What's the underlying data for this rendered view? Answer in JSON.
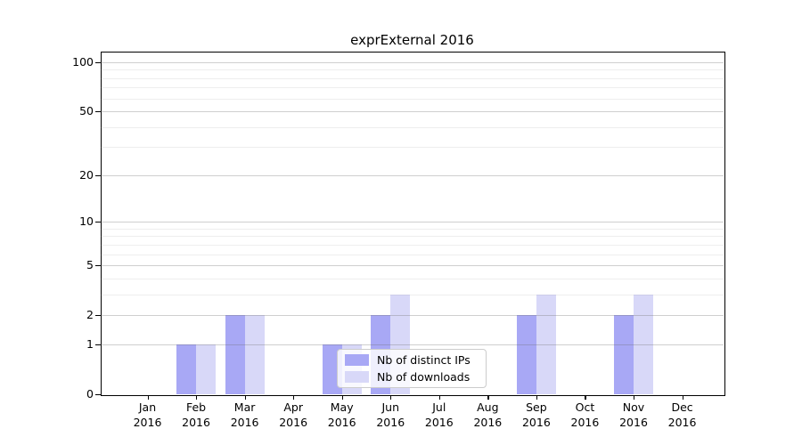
{
  "chart_data": {
    "type": "bar",
    "title": "exprExternal 2016",
    "categories": [
      "Jan",
      "Feb",
      "Mar",
      "Apr",
      "May",
      "Jun",
      "Jul",
      "Aug",
      "Sep",
      "Oct",
      "Nov",
      "Dec"
    ],
    "category_year": "2016",
    "series": [
      {
        "name": "Nb of distinct IPs",
        "color": "#a8a8f5",
        "values": [
          0,
          1,
          2,
          0,
          1,
          2,
          0,
          0,
          2,
          0,
          2,
          0
        ]
      },
      {
        "name": "Nb of downloads",
        "color": "#d8d8f8",
        "values": [
          0,
          1,
          2,
          0,
          1,
          3,
          0,
          0,
          3,
          0,
          3,
          0
        ]
      }
    ],
    "y_axis": {
      "scale": "log1p",
      "tick_values": [
        100,
        50,
        20,
        10,
        5,
        2,
        1,
        0
      ],
      "minor_gridline_values": [
        3,
        4,
        6,
        7,
        8,
        9,
        30,
        40,
        60,
        70,
        80,
        90
      ],
      "max_value": 117
    },
    "legend": {
      "position": "lower-center-inside",
      "labels": [
        "Nb of distinct IPs",
        "Nb of downloads"
      ]
    },
    "grid": true,
    "colors": {
      "axis": "#000000",
      "major_gridline": "#d2d2d2",
      "minor_gridline": "#ececec",
      "background": "#ffffff"
    }
  }
}
